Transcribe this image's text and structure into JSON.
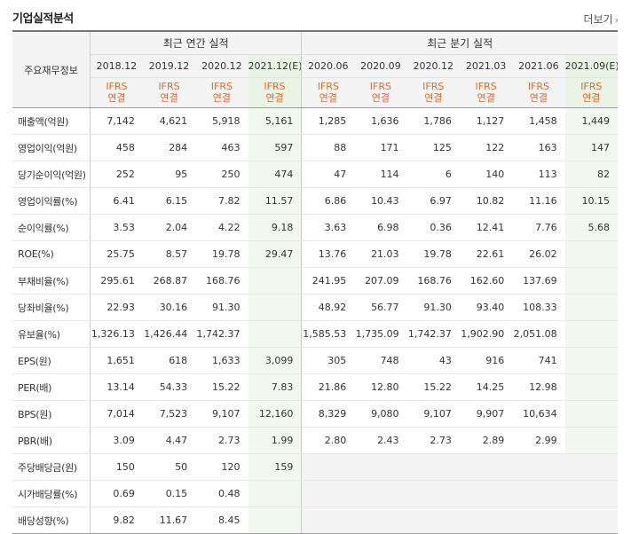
{
  "header": {
    "title": "기업실적분석",
    "more_label": "더보기"
  },
  "table": {
    "row_header_label": "주요재무정보",
    "annual_group_label": "최근 연간 실적",
    "quarter_group_label": "최근 분기 실적",
    "annual_periods": [
      "2018.12",
      "2019.12",
      "2020.12",
      "2021.12(E)"
    ],
    "quarter_periods": [
      "2020.06",
      "2020.09",
      "2020.12",
      "2021.03",
      "2021.06",
      "2021.09(E)"
    ],
    "ifrs_line1": "IFRS",
    "ifrs_line2": "연결",
    "rows": [
      {
        "label": "매출액(억원)",
        "values": [
          "7,142",
          "4,621",
          "5,918",
          "5,161",
          "1,285",
          "1,636",
          "1,786",
          "1,127",
          "1,458",
          "1,449"
        ]
      },
      {
        "label": "영업이익(억원)",
        "values": [
          "458",
          "284",
          "463",
          "597",
          "88",
          "171",
          "125",
          "122",
          "163",
          "147"
        ]
      },
      {
        "label": "당기순이익(억원)",
        "values": [
          "252",
          "95",
          "250",
          "474",
          "47",
          "114",
          "6",
          "140",
          "113",
          "82"
        ]
      },
      {
        "label": "영업이익률(%)",
        "values": [
          "6.41",
          "6.15",
          "7.82",
          "11.57",
          "6.86",
          "10.43",
          "6.97",
          "10.82",
          "11.16",
          "10.15"
        ]
      },
      {
        "label": "순이익률(%)",
        "values": [
          "3.53",
          "2.04",
          "4.22",
          "9.18",
          "3.63",
          "6.98",
          "0.36",
          "12.41",
          "7.76",
          "5.68"
        ]
      },
      {
        "label": "ROE(%)",
        "values": [
          "25.75",
          "8.57",
          "19.78",
          "29.47",
          "13.76",
          "21.03",
          "19.78",
          "22.61",
          "26.02",
          ""
        ]
      },
      {
        "label": "부채비율(%)",
        "values": [
          "295.61",
          "268.87",
          "168.76",
          "",
          "241.95",
          "207.09",
          "168.76",
          "162.60",
          "137.69",
          ""
        ]
      },
      {
        "label": "당좌비율(%)",
        "values": [
          "22.93",
          "30.16",
          "91.30",
          "",
          "48.92",
          "56.77",
          "91.30",
          "93.40",
          "108.33",
          ""
        ]
      },
      {
        "label": "유보율(%)",
        "values": [
          "1,326.13",
          "1,426.44",
          "1,742.37",
          "",
          "1,585.53",
          "1,735.09",
          "1,742.37",
          "1,902.90",
          "2,051.08",
          ""
        ]
      },
      {
        "label": "EPS(원)",
        "values": [
          "1,651",
          "618",
          "1,633",
          "3,099",
          "305",
          "748",
          "43",
          "916",
          "741",
          ""
        ]
      },
      {
        "label": "PER(배)",
        "values": [
          "13.14",
          "54.33",
          "15.22",
          "7.83",
          "21.86",
          "12.80",
          "15.22",
          "14.25",
          "12.98",
          ""
        ]
      },
      {
        "label": "BPS(원)",
        "values": [
          "7,014",
          "7,523",
          "9,107",
          "12,160",
          "8,329",
          "9,080",
          "9,107",
          "9,907",
          "10,634",
          ""
        ]
      },
      {
        "label": "PBR(배)",
        "values": [
          "3.09",
          "4.47",
          "2.73",
          "1.99",
          "2.80",
          "2.43",
          "2.73",
          "2.89",
          "2.99",
          ""
        ]
      },
      {
        "label": "주당배당금(원)",
        "values": [
          "150",
          "50",
          "120",
          "159",
          "",
          "",
          "",
          "",
          "",
          ""
        ]
      },
      {
        "label": "시가배당률(%)",
        "values": [
          "0.69",
          "0.15",
          "0.48",
          "",
          "",
          "",
          "",
          "",
          "",
          ""
        ]
      },
      {
        "label": "배당성향(%)",
        "values": [
          "9.82",
          "11.67",
          "8.45",
          "",
          "",
          "",
          "",
          "",
          "",
          ""
        ]
      }
    ]
  }
}
